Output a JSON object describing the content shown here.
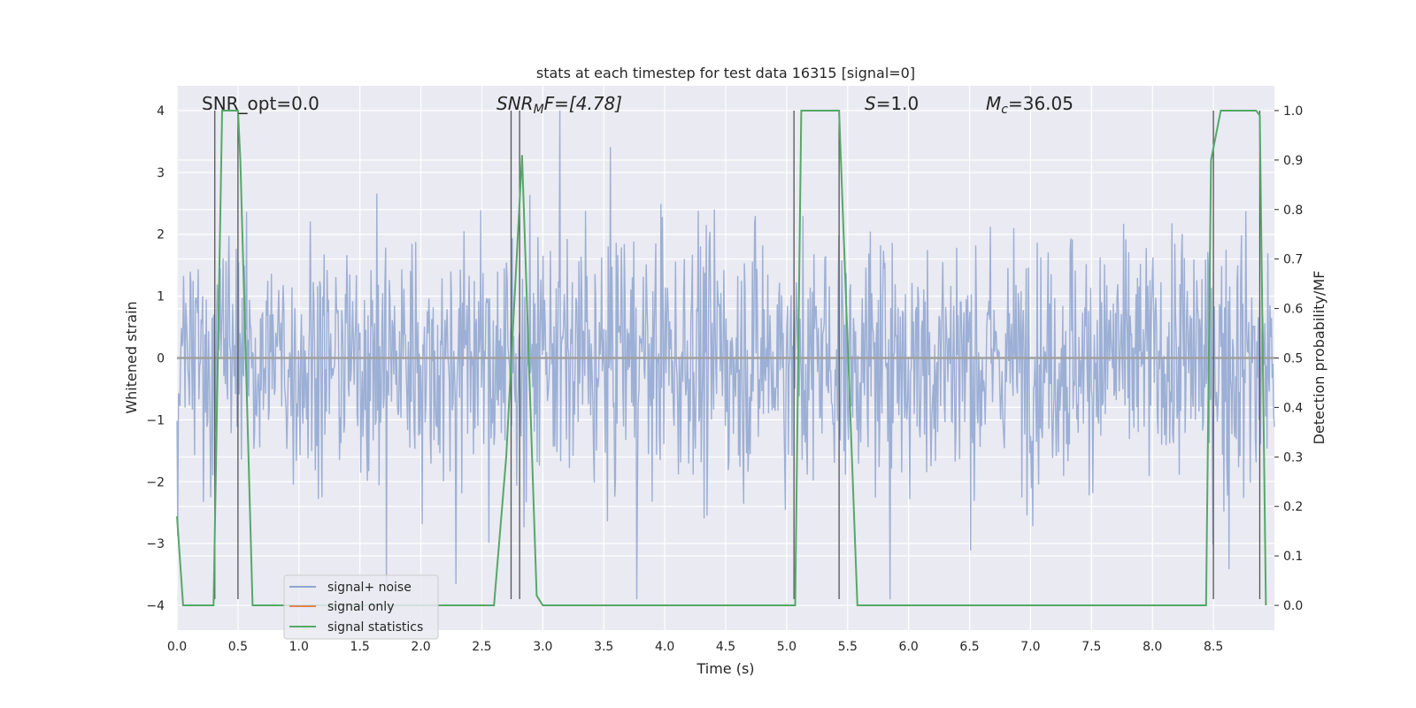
{
  "chart_data": {
    "type": "line",
    "title": "stats at each timestep for test data 16315 [signal=0]",
    "xlabel": "Time (s)",
    "ylabel": "Whitened strain",
    "y2label": "Detection probability/MF",
    "xlim": [
      0.0,
      9.0
    ],
    "ylim": [
      -4.4,
      4.4
    ],
    "y2lim": [
      -0.05,
      1.05
    ],
    "xticks": [
      "0.0",
      "0.5",
      "1.0",
      "1.5",
      "2.0",
      "2.5",
      "3.0",
      "3.5",
      "4.0",
      "4.5",
      "5.0",
      "5.5",
      "6.0",
      "6.5",
      "7.0",
      "7.5",
      "8.0",
      "8.5"
    ],
    "yticks": [
      "4",
      "3",
      "2",
      "1",
      "0",
      "−1",
      "−2",
      "−3",
      "−4"
    ],
    "y2ticks": [
      "1.0",
      "0.9",
      "0.8",
      "0.7",
      "0.6",
      "0.5",
      "0.4",
      "0.3",
      "0.2",
      "0.1",
      "0.0"
    ],
    "grid": true,
    "annotations": {
      "snr_opt": "SNR_opt=0.0",
      "snr_mf_label": "SNR",
      "snr_mf_sub": "M",
      "snr_mf_rest": "F=[4.78]",
      "s_label": "S",
      "s_rest": "=1.0",
      "mc_label": "M",
      "mc_sub": "c",
      "mc_rest": "=36.05"
    },
    "legend": {
      "position": "lower-left",
      "entries": [
        {
          "label": "signal+ noise",
          "color": "#8ea5d0"
        },
        {
          "label": "signal only",
          "color": "#dd8452"
        },
        {
          "label": "signal statistics",
          "color": "#55a868"
        }
      ]
    },
    "series": [
      {
        "name": "signal+ noise",
        "type": "noise",
        "color": "#8ea5d0",
        "envelope": {
          "x": [
            0.0,
            9.0
          ],
          "typical_abs": 1.6,
          "peak_max": 4.0,
          "peak_min": -3.9
        }
      },
      {
        "name": "signal only",
        "color": "#dd8452",
        "x": [
          0.0,
          9.0
        ],
        "y": [
          0.0,
          0.0
        ]
      },
      {
        "name": "signal statistics",
        "axis": "right",
        "color": "#55a868",
        "x": [
          0.0,
          0.05,
          0.3,
          0.37,
          0.5,
          0.52,
          0.62,
          2.6,
          2.7,
          2.83,
          2.95,
          3.0,
          5.07,
          5.12,
          5.43,
          5.58,
          8.44,
          8.48,
          8.56,
          8.85,
          8.88,
          8.93
        ],
        "y": [
          0.18,
          0.0,
          0.0,
          1.0,
          1.0,
          0.9,
          0.0,
          0.0,
          0.3,
          0.91,
          0.02,
          0.0,
          0.0,
          1.0,
          1.0,
          0.0,
          0.0,
          0.9,
          1.0,
          1.0,
          0.99,
          0.0
        ]
      }
    ],
    "vertical_lines": [
      0.31,
      0.5,
      2.74,
      2.81,
      5.06,
      5.43,
      8.5,
      8.88
    ]
  }
}
